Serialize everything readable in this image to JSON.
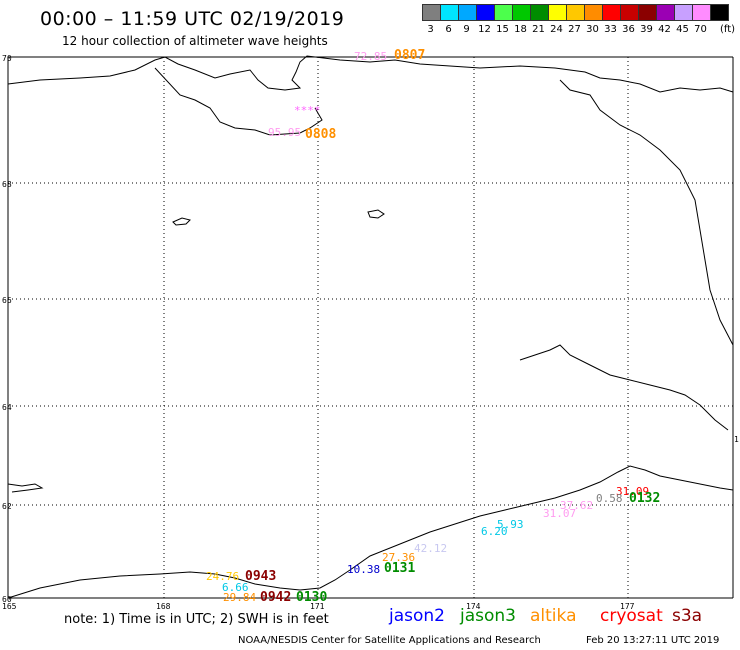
{
  "header": {
    "title": "00:00 – 11:59 UTC 02/19/2019",
    "subtitle": "12 hour collection of altimeter wave heights"
  },
  "colorbar": {
    "unit": "(ft)",
    "bins": [
      {
        "label": "3",
        "color": "#7f7f7f"
      },
      {
        "label": "6",
        "color": "#00e5ff"
      },
      {
        "label": "9",
        "color": "#00a8ff"
      },
      {
        "label": "12",
        "color": "#0000ff"
      },
      {
        "label": "15",
        "color": "#4cff4c"
      },
      {
        "label": "18",
        "color": "#00c800"
      },
      {
        "label": "21",
        "color": "#008c00"
      },
      {
        "label": "24",
        "color": "#ffff00"
      },
      {
        "label": "27",
        "color": "#ffc800"
      },
      {
        "label": "30",
        "color": "#ff8c00"
      },
      {
        "label": "33",
        "color": "#ff0000"
      },
      {
        "label": "36",
        "color": "#c80000"
      },
      {
        "label": "39",
        "color": "#8b0000"
      },
      {
        "label": "42",
        "color": "#9b00b4"
      },
      {
        "label": "45",
        "color": "#c8a0ff"
      },
      {
        "label": "70",
        "color": "#ff8cff"
      },
      {
        "label": "",
        "color": "#000000"
      }
    ]
  },
  "map": {
    "lat_labels": [
      "70",
      "68",
      "66",
      "64",
      "62",
      "60"
    ],
    "lon_labels": [
      "165",
      "168",
      "171",
      "174",
      "177"
    ],
    "edge_label": "1"
  },
  "observations": [
    {
      "text": "72.85",
      "color": "#ff9cf0",
      "kind": "swh"
    },
    {
      "text": "0807",
      "color": "#ff9000",
      "kind": "time"
    },
    {
      "text": "****",
      "color": "#ff66ff",
      "kind": "swh"
    },
    {
      "text": "95.95",
      "color": "#ff9cf0",
      "kind": "swh"
    },
    {
      "text": "0808",
      "color": "#ff9000",
      "kind": "time"
    },
    {
      "text": "31.09",
      "color": "#ff0000",
      "kind": "swh"
    },
    {
      "text": "0.58",
      "color": "#7f7f7f",
      "kind": "swh"
    },
    {
      "text": "0132",
      "color": "#008c00",
      "kind": "time"
    },
    {
      "text": "37.62",
      "color": "#ff9cf0",
      "kind": "swh"
    },
    {
      "text": "31.07",
      "color": "#ff9cf0",
      "kind": "swh"
    },
    {
      "text": "5.93",
      "color": "#00c8e6",
      "kind": "swh"
    },
    {
      "text": "6.20",
      "color": "#00c8e6",
      "kind": "swh"
    },
    {
      "text": "42.12",
      "color": "#c8c8f0",
      "kind": "swh"
    },
    {
      "text": "27.36",
      "color": "#ff9000",
      "kind": "swh"
    },
    {
      "text": "10.38",
      "color": "#0000cc",
      "kind": "swh"
    },
    {
      "text": "0131",
      "color": "#008c00",
      "kind": "time"
    },
    {
      "text": "24.76",
      "color": "#ffc800",
      "kind": "swh"
    },
    {
      "text": "0943",
      "color": "#8b0000",
      "kind": "time"
    },
    {
      "text": "6.66",
      "color": "#00c8e6",
      "kind": "swh"
    },
    {
      "text": "29.84",
      "color": "#ff9000",
      "kind": "swh"
    },
    {
      "text": "0942",
      "color": "#8b0000",
      "kind": "time"
    },
    {
      "text": "0130",
      "color": "#008c00",
      "kind": "time"
    }
  ],
  "footer": {
    "note": "note: 1) Time is in UTC; 2) SWH is in feet",
    "legend": [
      {
        "label": "jason2",
        "color": "#0000ff"
      },
      {
        "label": "jason3",
        "color": "#008c00"
      },
      {
        "label": "altika",
        "color": "#ff9000"
      },
      {
        "label": "cryosat",
        "color": "#ff0000"
      },
      {
        "label": "s3a",
        "color": "#8b0000"
      }
    ],
    "credit": "NOAA/NESDIS Center for Satellite Applications and Research",
    "timestamp": "Feb 20 13:27:11 UTC 2019"
  }
}
